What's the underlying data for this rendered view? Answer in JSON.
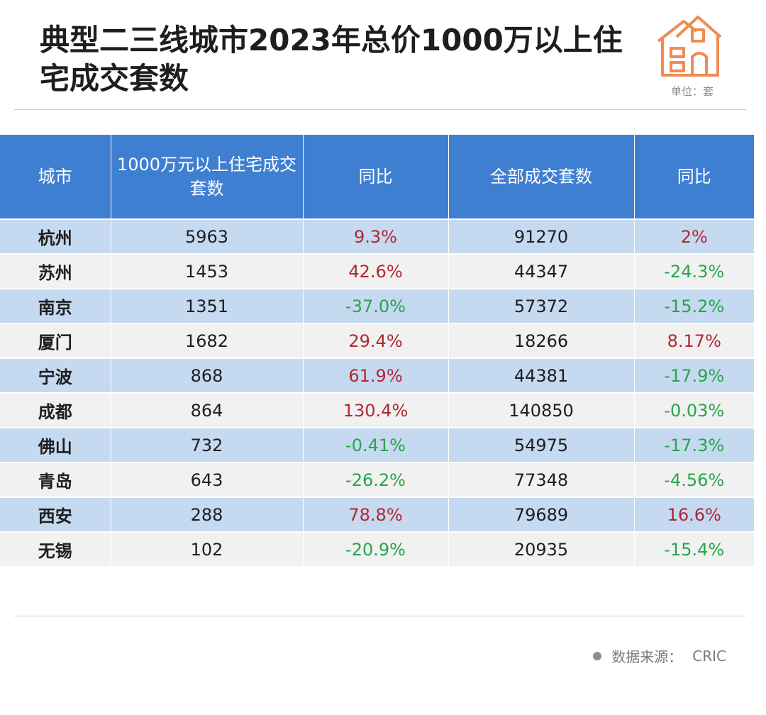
{
  "title": "典型二三线城市2023年总价1000万以上住宅成交套数",
  "unit": "单位：套",
  "source": {
    "label": "数据来源：",
    "value": "CRIC"
  },
  "icon": "house-icon",
  "colors": {
    "header": "#3f7fd1",
    "positive": "#b0282e",
    "negative": "#27a54a",
    "band": "#c5d9f1"
  },
  "chart_data": {
    "type": "table",
    "columns": [
      "城市",
      "1000万元以上住宅成交套数",
      "同比",
      "全部成交套数",
      "同比"
    ],
    "rows": [
      {
        "city": "杭州",
        "luxury": "5963",
        "luxury_yoy": "9.3%",
        "total": "91270",
        "total_yoy": "2%"
      },
      {
        "city": "苏州",
        "luxury": "1453",
        "luxury_yoy": "42.6%",
        "total": "44347",
        "total_yoy": "-24.3%"
      },
      {
        "city": "南京",
        "luxury": "1351",
        "luxury_yoy": "-37.0%",
        "total": "57372",
        "total_yoy": "-15.2%"
      },
      {
        "city": "厦门",
        "luxury": "1682",
        "luxury_yoy": "29.4%",
        "total": "18266",
        "total_yoy": "8.17%"
      },
      {
        "city": "宁波",
        "luxury": "868",
        "luxury_yoy": "61.9%",
        "total": "44381",
        "total_yoy": "-17.9%"
      },
      {
        "city": "成都",
        "luxury": "864",
        "luxury_yoy": "130.4%",
        "total": "140850",
        "total_yoy": "-0.03%"
      },
      {
        "city": "佛山",
        "luxury": "732",
        "luxury_yoy": "-0.41%",
        "total": "54975",
        "total_yoy": "-17.3%"
      },
      {
        "city": "青岛",
        "luxury": "643",
        "luxury_yoy": "-26.2%",
        "total": "77348",
        "total_yoy": "-4.56%"
      },
      {
        "city": "西安",
        "luxury": "288",
        "luxury_yoy": "78.8%",
        "total": "79689",
        "total_yoy": "16.6%"
      },
      {
        "city": "无锡",
        "luxury": "102",
        "luxury_yoy": "-20.9%",
        "total": "20935",
        "total_yoy": "-15.4%"
      }
    ]
  }
}
